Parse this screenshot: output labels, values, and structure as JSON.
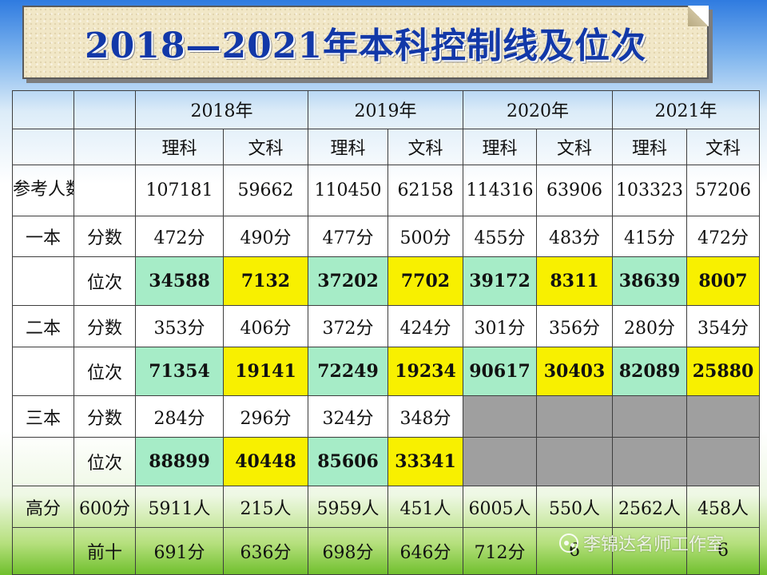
{
  "title": "2018—2021年本科控制线及位次",
  "years": [
    "2018年",
    "2019年",
    "2020年",
    "2021年"
  ],
  "subjects": [
    "理科",
    "文科",
    "理科",
    "文科",
    "理科",
    "文科",
    "理科",
    "文科"
  ],
  "participants": {
    "label": "参考人数",
    "values": [
      "107181",
      "59662",
      "110450",
      "62158",
      "114316",
      "63906",
      "103323",
      "57206"
    ]
  },
  "tier1": {
    "label": "一本",
    "score_label": "分数",
    "scores": [
      "472分",
      "490分",
      "477分",
      "500分",
      "455分",
      "483分",
      "415分",
      "472分"
    ],
    "rank_label": "位次",
    "ranks": [
      "34588",
      "7132",
      "37202",
      "7702",
      "39172",
      "8311",
      "38639",
      "8007"
    ]
  },
  "tier2": {
    "label": "二本",
    "score_label": "分数",
    "scores": [
      "353分",
      "406分",
      "372分",
      "424分",
      "301分",
      "356分",
      "280分",
      "354分"
    ],
    "rank_label": "位次",
    "ranks": [
      "71354",
      "19141",
      "72249",
      "19234",
      "90617",
      "30403",
      "82089",
      "25880"
    ]
  },
  "tier3": {
    "label": "三本",
    "score_label": "分数",
    "scores": [
      "284分",
      "296分",
      "324分",
      "348分"
    ],
    "rank_label": "位次",
    "ranks": [
      "88899",
      "40448",
      "85606",
      "33341"
    ]
  },
  "high_scores": {
    "label": "高分",
    "row1_label": "600分",
    "row1_values": [
      "5911人",
      "215人",
      "5959人",
      "451人",
      "6005人",
      "550人",
      "2562人",
      "458人"
    ],
    "row2_label": "前十",
    "row2_values": [
      "691分",
      "636分",
      "698分",
      "646分",
      "712分",
      "6",
      "",
      "6"
    ]
  },
  "watermark": "李锦达名师工作室",
  "colors": {
    "science_rank_bg": "#a6ecc7",
    "arts_rank_bg": "#f8f000",
    "empty_cell_bg": "#9f9f9f",
    "title_color": "#1238a8"
  }
}
